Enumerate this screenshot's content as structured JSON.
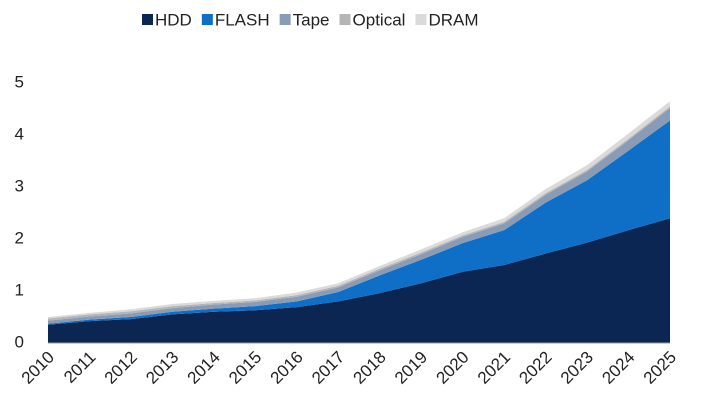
{
  "chart_data": {
    "type": "stacked-area",
    "categories": [
      "2010",
      "2011",
      "2012",
      "2013",
      "2014",
      "2015",
      "2016",
      "2017",
      "2018",
      "2019",
      "2020",
      "2021",
      "2022",
      "2023",
      "2024",
      "2025"
    ],
    "series": [
      {
        "name": "HDD",
        "color": "#0b2652",
        "values": [
          0.35,
          0.42,
          0.46,
          0.55,
          0.6,
          0.63,
          0.69,
          0.8,
          0.96,
          1.15,
          1.37,
          1.5,
          1.72,
          1.93,
          2.17,
          2.4
        ]
      },
      {
        "name": "FLASH",
        "color": "#0f6fc6",
        "values": [
          0.02,
          0.03,
          0.04,
          0.05,
          0.06,
          0.08,
          0.11,
          0.18,
          0.34,
          0.45,
          0.55,
          0.67,
          0.98,
          1.2,
          1.53,
          1.88
        ]
      },
      {
        "name": "Tape",
        "color": "#8a9bb5",
        "values": [
          0.06,
          0.06,
          0.07,
          0.07,
          0.08,
          0.08,
          0.09,
          0.09,
          0.1,
          0.11,
          0.12,
          0.13,
          0.15,
          0.17,
          0.2,
          0.24
        ]
      },
      {
        "name": "Optical",
        "color": "#b5b5b5",
        "values": [
          0.04,
          0.04,
          0.04,
          0.04,
          0.03,
          0.03,
          0.03,
          0.03,
          0.03,
          0.03,
          0.03,
          0.03,
          0.03,
          0.03,
          0.03,
          0.03
        ]
      },
      {
        "name": "DRAM",
        "color": "#dadada",
        "values": [
          0.03,
          0.03,
          0.04,
          0.04,
          0.04,
          0.04,
          0.05,
          0.05,
          0.05,
          0.06,
          0.06,
          0.07,
          0.08,
          0.09,
          0.1,
          0.1
        ]
      }
    ],
    "ylim": [
      0,
      5
    ],
    "yticks": [
      0,
      1,
      2,
      3,
      4,
      5
    ],
    "legend": "top"
  }
}
